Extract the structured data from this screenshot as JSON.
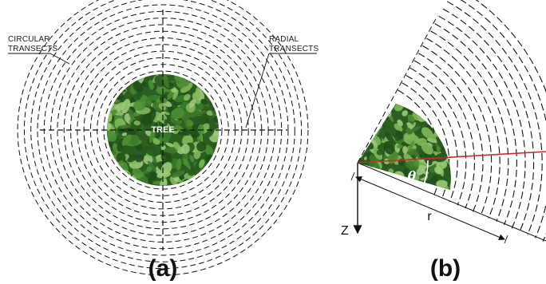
{
  "panel_a": {
    "label": "(a)",
    "tree_label": "TREE",
    "callout_left": [
      "CIRCULAR",
      "TRANSECTS"
    ],
    "callout_right": [
      "RADIAL",
      "TRANSECTS"
    ]
  },
  "panel_b": {
    "label": "(b)",
    "theta_label": "θ",
    "radius_label": "r",
    "depth_label": "Z"
  },
  "colors": {
    "foliage_dark": "#1f4f1a",
    "foliage_mid": "#3d7a2a",
    "foliage_light": "#7fb85a",
    "red_line": "#cc2a2a",
    "line": "#111111"
  }
}
